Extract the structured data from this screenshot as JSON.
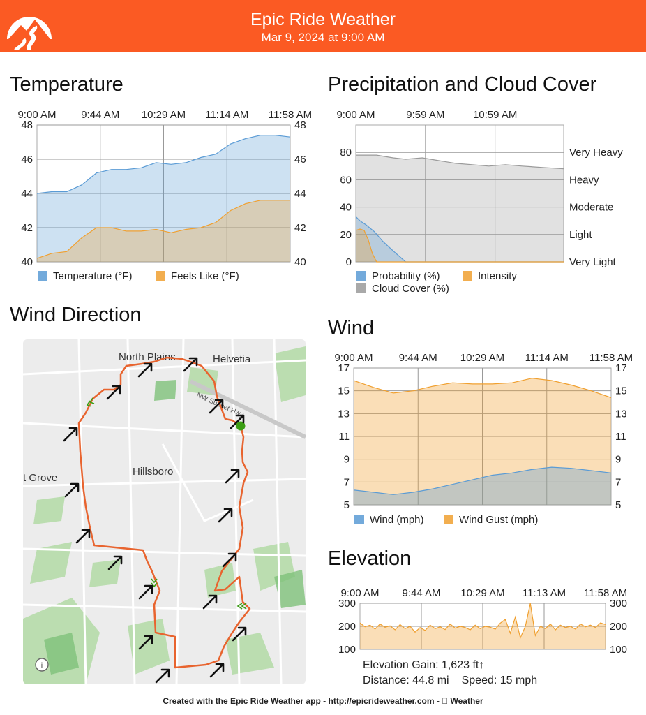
{
  "header": {
    "title": "Epic Ride Weather",
    "subtitle": "Mar 9, 2024 at 9:00 AM",
    "logo_icon": "mountain-road-logo",
    "brand_color": "#fb5a23"
  },
  "temperature": {
    "heading": "Temperature",
    "chart_data": {
      "type": "area",
      "x_ticks": [
        "9:00 AM",
        "9:44 AM",
        "10:29 AM",
        "11:14 AM",
        "11:58 AM"
      ],
      "y_ticks": [
        "48",
        "46",
        "44",
        "42",
        "40"
      ],
      "ylim": [
        40,
        48
      ],
      "grid": true,
      "legend_position": "bottom",
      "series": [
        {
          "name": "Temperature (°F)",
          "color": "#5a9bd5",
          "values": [
            44.0,
            44.1,
            44.1,
            44.5,
            45.2,
            45.4,
            45.4,
            45.5,
            45.8,
            45.7,
            45.8,
            46.1,
            46.3,
            46.9,
            47.2,
            47.4,
            47.4,
            47.3
          ]
        },
        {
          "name": "Feels Like (°F)",
          "color": "#f0a030",
          "values": [
            40.2,
            40.5,
            40.6,
            41.4,
            42.0,
            42.0,
            41.8,
            41.8,
            41.9,
            41.7,
            41.9,
            42.0,
            42.3,
            43.0,
            43.4,
            43.6,
            43.6,
            43.6
          ]
        }
      ]
    }
  },
  "precip": {
    "heading": "Precipitation and Cloud Cover",
    "chart_data": {
      "type": "area",
      "x_ticks": [
        "9:00 AM",
        "9:59 AM",
        "10:59 AM"
      ],
      "y_ticks": [
        "80",
        "60",
        "40",
        "20",
        "0"
      ],
      "right_ticks": [
        "Very Heavy",
        "Heavy",
        "Moderate",
        "Light",
        "Very Light"
      ],
      "ylim": [
        0,
        100
      ],
      "grid": true,
      "legend_position": "bottom",
      "series": [
        {
          "name": "Probability (%)",
          "color": "#5a9bd5",
          "x": [
            0,
            2,
            5,
            9,
            13,
            18,
            24,
            100
          ],
          "values": [
            33,
            30,
            27,
            22,
            15,
            8,
            0,
            0
          ]
        },
        {
          "name": "Intensity",
          "color": "#f0a030",
          "x": [
            0,
            2,
            4,
            6,
            8,
            10,
            12,
            100
          ],
          "values": [
            23,
            24,
            23,
            16,
            6,
            0,
            0,
            0
          ]
        },
        {
          "name": "Cloud Cover (%)",
          "color": "#9a9a9a",
          "x": [
            0,
            10,
            18,
            24,
            32,
            40,
            48,
            56,
            64,
            72,
            80,
            90,
            100
          ],
          "values": [
            78,
            78,
            76,
            75,
            76,
            74,
            72,
            71,
            70,
            71,
            70,
            69,
            68
          ]
        }
      ]
    }
  },
  "wind_direction": {
    "heading": "Wind Direction",
    "map_labels": [
      "North Plains",
      "Helvetia",
      "NW Sunset Hwy",
      "Hillsboro",
      "t Grove"
    ],
    "info_icon": "info-icon"
  },
  "wind": {
    "heading": "Wind",
    "chart_data": {
      "type": "area",
      "x_ticks": [
        "9:00 AM",
        "9:44 AM",
        "10:29 AM",
        "11:14 AM",
        "11:58 AM"
      ],
      "y_ticks": [
        "17",
        "15",
        "13",
        "11",
        "9",
        "7",
        "5"
      ],
      "ylim": [
        5,
        17
      ],
      "grid": true,
      "legend_position": "bottom",
      "series": [
        {
          "name": "Wind (mph)",
          "color": "#5a9bd5",
          "values": [
            6.3,
            6.1,
            5.9,
            6.1,
            6.4,
            6.8,
            7.2,
            7.6,
            7.8,
            8.1,
            8.3,
            8.2,
            8.0,
            7.8
          ]
        },
        {
          "name": "Wind Gust (mph)",
          "color": "#f0a030",
          "values": [
            15.9,
            15.3,
            14.8,
            15.0,
            15.4,
            15.7,
            15.6,
            15.6,
            15.7,
            16.1,
            15.9,
            15.5,
            15.0,
            14.4
          ]
        }
      ]
    }
  },
  "elevation": {
    "heading": "Elevation",
    "chart_data": {
      "type": "area",
      "x_ticks": [
        "9:00 AM",
        "9:44 AM",
        "10:29 AM",
        "11:13 AM",
        "11:58 AM"
      ],
      "y_ticks": [
        "300",
        "200",
        "100"
      ],
      "ylim": [
        100,
        300
      ],
      "grid": true,
      "series": [
        {
          "name": "Elevation",
          "color": "#f0a030",
          "values": [
            215,
            198,
            205,
            188,
            210,
            196,
            202,
            185,
            208,
            190,
            200,
            175,
            195,
            182,
            205,
            190,
            198,
            186,
            210,
            192,
            200,
            195,
            185,
            205,
            190,
            200,
            196,
            188,
            214,
            230,
            170,
            240,
            150,
            200,
            300,
            160,
            200,
            190,
            210,
            185,
            205,
            195,
            200,
            188,
            210,
            198,
            205,
            195,
            215,
            208
          ]
        }
      ]
    },
    "gain_text": "Elevation Gain: 1,623 ft↑",
    "distance_text": "Distance: 44.8 mi",
    "speed_text": "Speed: 15 mph"
  },
  "footer": {
    "text": "Created with the Epic Ride Weather app - http://epicrideweather.com -  Weather"
  }
}
